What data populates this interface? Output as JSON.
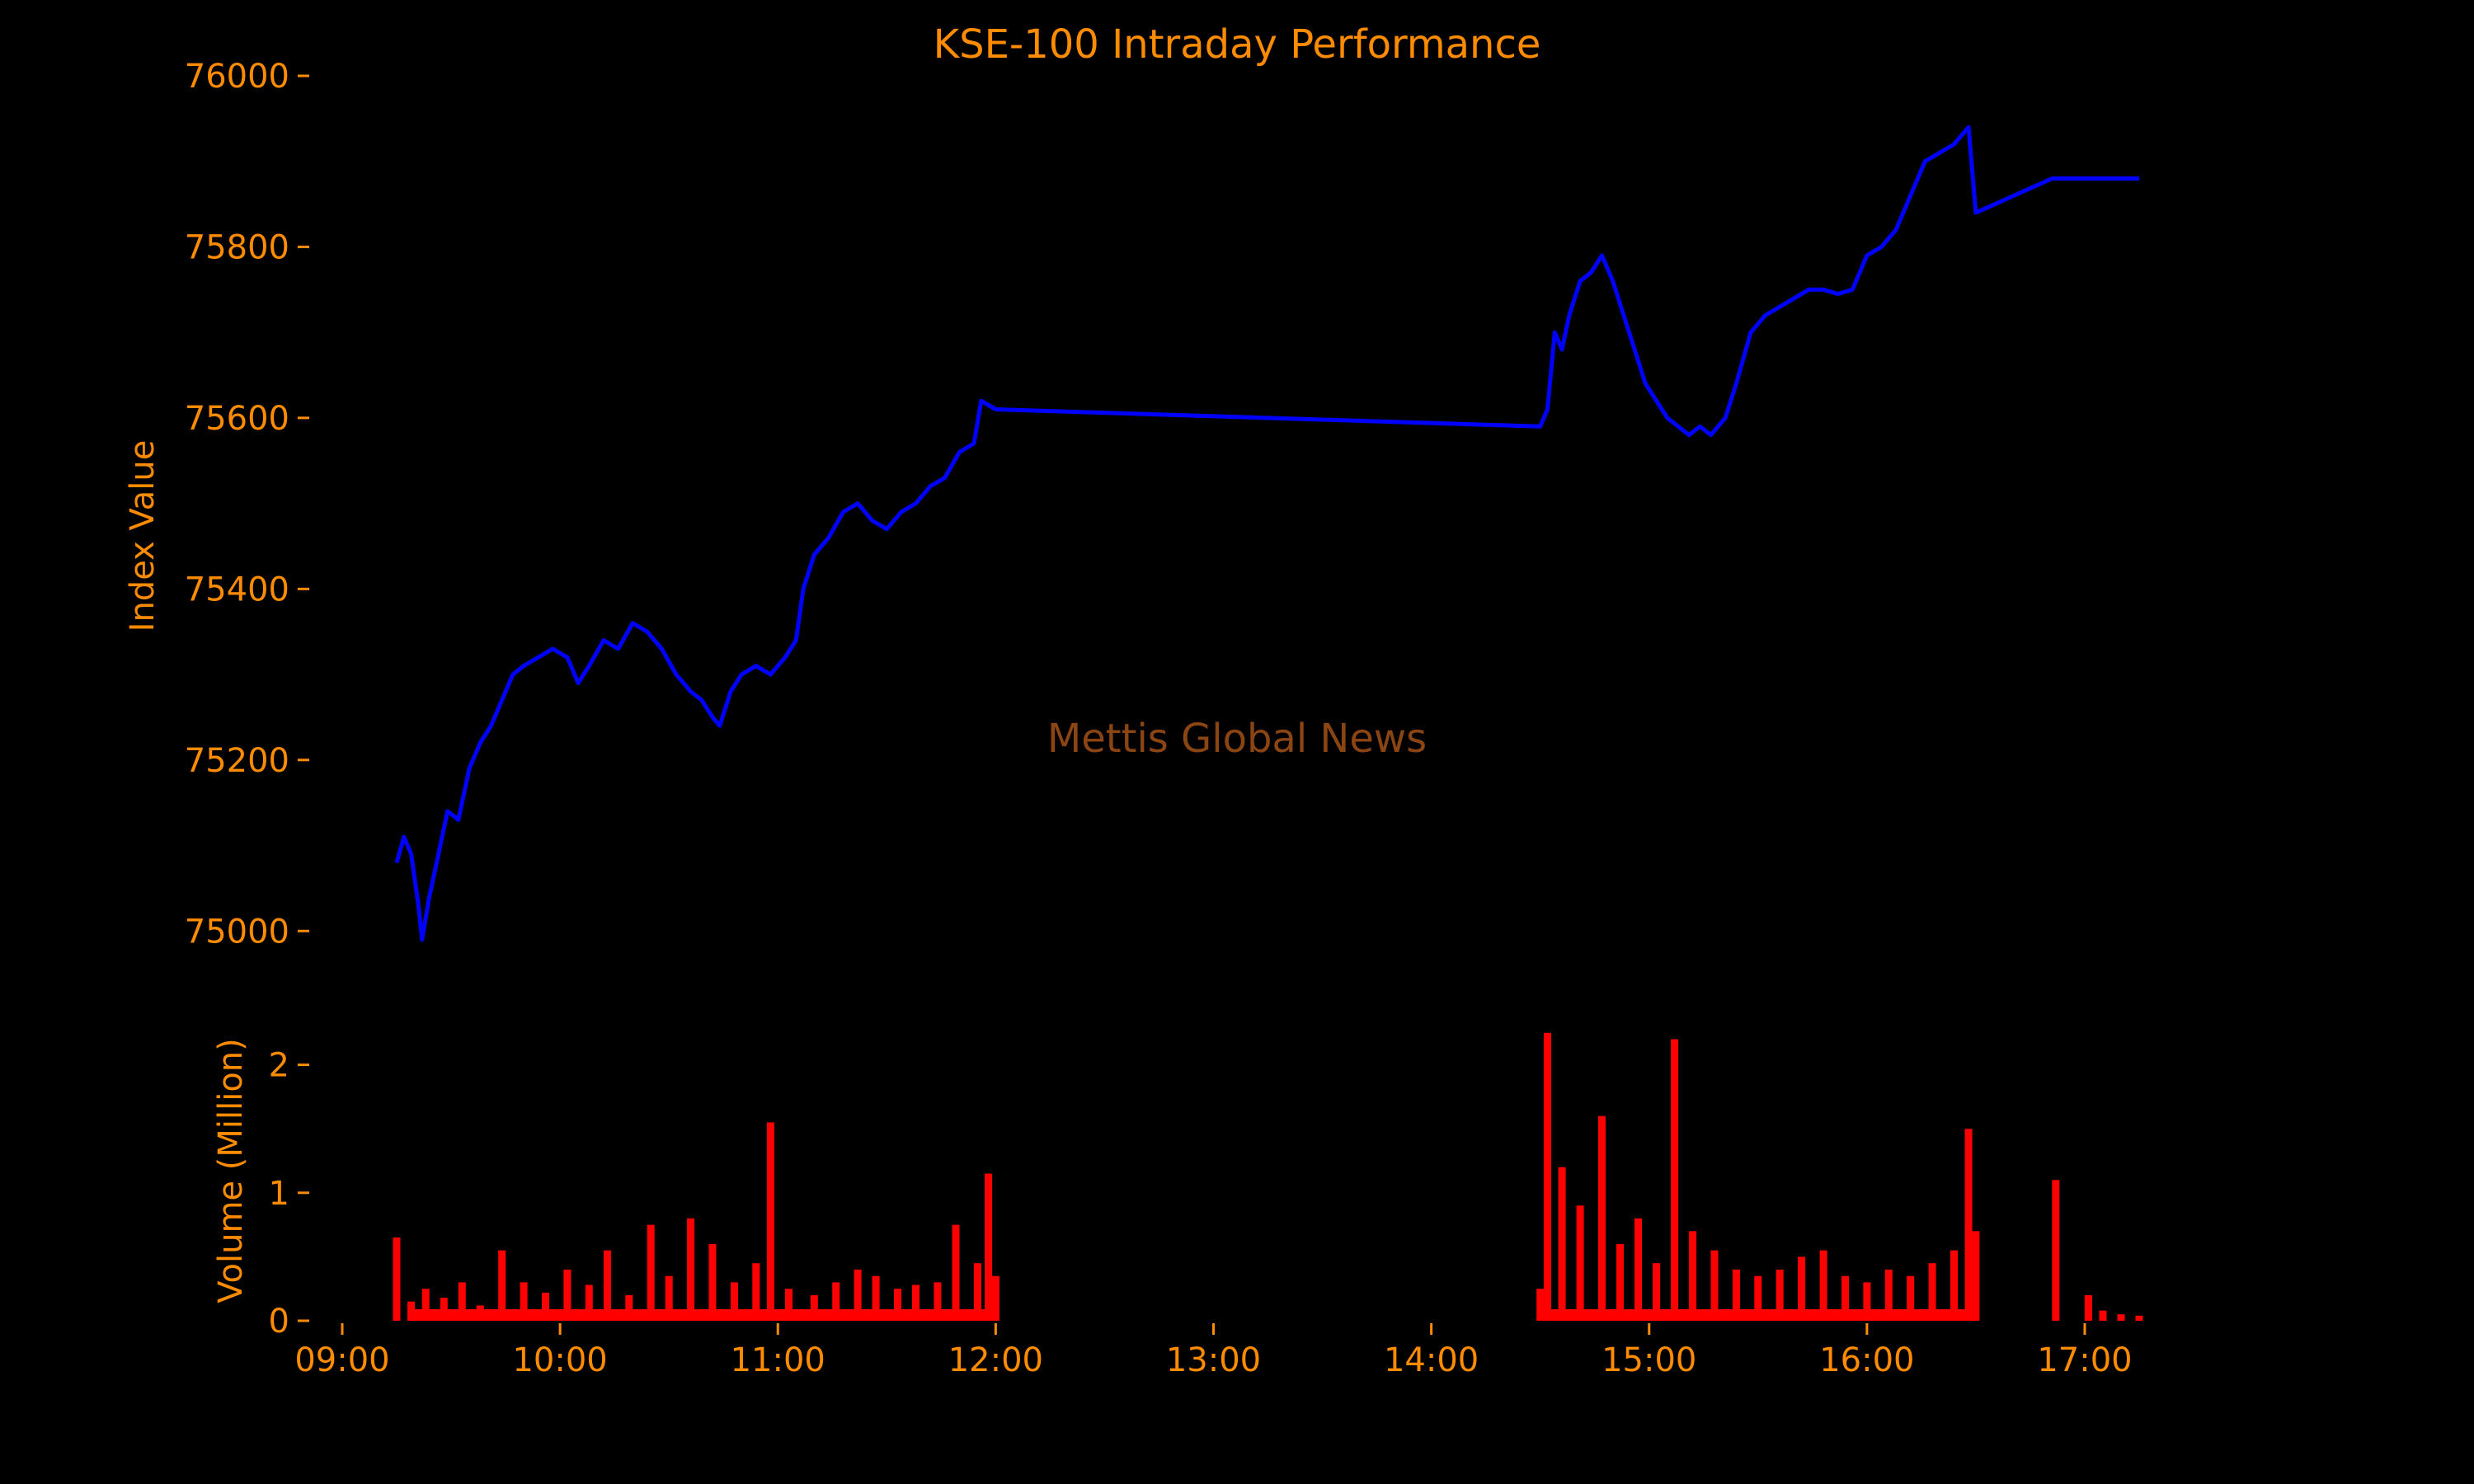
{
  "chart_data": [
    {
      "type": "line",
      "title": "KSE-100 Intraday Performance",
      "xlabel": "",
      "ylabel": "Index Value",
      "xlim": [
        "09:00",
        "17:25"
      ],
      "ylim": [
        74980,
        76000
      ],
      "yticks": [
        75000,
        75200,
        75400,
        75600,
        75800,
        76000
      ],
      "grid": false,
      "series": [
        {
          "color": "#0000FF",
          "points": [
            [
              "09:15",
              75080
            ],
            [
              "09:17",
              75110
            ],
            [
              "09:19",
              75090
            ],
            [
              "09:21",
              75030
            ],
            [
              "09:22",
              74990
            ],
            [
              "09:24",
              75040
            ],
            [
              "09:26",
              75080
            ],
            [
              "09:29",
              75140
            ],
            [
              "09:32",
              75130
            ],
            [
              "09:35",
              75190
            ],
            [
              "09:38",
              75220
            ],
            [
              "09:41",
              75240
            ],
            [
              "09:44",
              75270
            ],
            [
              "09:47",
              75300
            ],
            [
              "09:50",
              75310
            ],
            [
              "09:54",
              75320
            ],
            [
              "09:58",
              75330
            ],
            [
              "10:02",
              75320
            ],
            [
              "10:05",
              75290
            ],
            [
              "10:08",
              75310
            ],
            [
              "10:12",
              75340
            ],
            [
              "10:16",
              75330
            ],
            [
              "10:20",
              75360
            ],
            [
              "10:24",
              75350
            ],
            [
              "10:28",
              75330
            ],
            [
              "10:32",
              75300
            ],
            [
              "10:36",
              75280
            ],
            [
              "10:39",
              75270
            ],
            [
              "10:42",
              75250
            ],
            [
              "10:44",
              75240
            ],
            [
              "10:47",
              75280
            ],
            [
              "10:50",
              75300
            ],
            [
              "10:54",
              75310
            ],
            [
              "10:58",
              75300
            ],
            [
              "11:02",
              75320
            ],
            [
              "11:05",
              75340
            ],
            [
              "11:07",
              75400
            ],
            [
              "11:10",
              75440
            ],
            [
              "11:14",
              75460
            ],
            [
              "11:18",
              75490
            ],
            [
              "11:22",
              75500
            ],
            [
              "11:26",
              75480
            ],
            [
              "11:30",
              75470
            ],
            [
              "11:34",
              75490
            ],
            [
              "11:38",
              75500
            ],
            [
              "11:42",
              75520
            ],
            [
              "11:46",
              75530
            ],
            [
              "11:50",
              75560
            ],
            [
              "11:54",
              75570
            ],
            [
              "11:56",
              75620
            ],
            [
              "11:58",
              75615
            ],
            [
              "12:00",
              75610
            ],
            [
              "14:30",
              75590
            ],
            [
              "14:32",
              75610
            ],
            [
              "14:34",
              75700
            ],
            [
              "14:36",
              75680
            ],
            [
              "14:38",
              75720
            ],
            [
              "14:41",
              75760
            ],
            [
              "14:44",
              75770
            ],
            [
              "14:47",
              75790
            ],
            [
              "14:50",
              75760
            ],
            [
              "14:53",
              75720
            ],
            [
              "14:56",
              75680
            ],
            [
              "14:59",
              75640
            ],
            [
              "15:02",
              75620
            ],
            [
              "15:05",
              75600
            ],
            [
              "15:08",
              75590
            ],
            [
              "15:11",
              75580
            ],
            [
              "15:14",
              75590
            ],
            [
              "15:17",
              75580
            ],
            [
              "15:21",
              75600
            ],
            [
              "15:24",
              75640
            ],
            [
              "15:28",
              75700
            ],
            [
              "15:32",
              75720
            ],
            [
              "15:36",
              75730
            ],
            [
              "15:40",
              75740
            ],
            [
              "15:44",
              75750
            ],
            [
              "15:48",
              75750
            ],
            [
              "15:52",
              75745
            ],
            [
              "15:56",
              75750
            ],
            [
              "16:00",
              75790
            ],
            [
              "16:04",
              75800
            ],
            [
              "16:08",
              75820
            ],
            [
              "16:12",
              75860
            ],
            [
              "16:16",
              75900
            ],
            [
              "16:20",
              75910
            ],
            [
              "16:24",
              75920
            ],
            [
              "16:28",
              75940
            ],
            [
              "16:30",
              75840
            ],
            [
              "16:51",
              75880
            ],
            [
              "17:15",
              75880
            ]
          ]
        }
      ]
    },
    {
      "type": "bar",
      "xlabel": "",
      "ylabel": "Volume (Million)",
      "xlim": [
        "09:00",
        "17:25"
      ],
      "ylim": [
        0,
        2.3
      ],
      "yticks": [
        0,
        1,
        2
      ],
      "xticks": [
        "09:00",
        "10:00",
        "11:00",
        "12:00",
        "13:00",
        "14:00",
        "15:00",
        "16:00",
        "17:00"
      ],
      "grid": false,
      "series": [
        {
          "color": "#FF0000",
          "points": [
            [
              "09:15",
              0.65
            ],
            [
              "09:19",
              0.15
            ],
            [
              "09:23",
              0.25
            ],
            [
              "09:28",
              0.18
            ],
            [
              "09:33",
              0.3
            ],
            [
              "09:38",
              0.12
            ],
            [
              "09:44",
              0.55
            ],
            [
              "09:50",
              0.3
            ],
            [
              "09:56",
              0.22
            ],
            [
              "10:02",
              0.4
            ],
            [
              "10:08",
              0.28
            ],
            [
              "10:13",
              0.55
            ],
            [
              "10:19",
              0.2
            ],
            [
              "10:25",
              0.75
            ],
            [
              "10:30",
              0.35
            ],
            [
              "10:36",
              0.8
            ],
            [
              "10:42",
              0.6
            ],
            [
              "10:48",
              0.3
            ],
            [
              "10:54",
              0.45
            ],
            [
              "10:58",
              1.55
            ],
            [
              "11:03",
              0.25
            ],
            [
              "11:10",
              0.2
            ],
            [
              "11:16",
              0.3
            ],
            [
              "11:22",
              0.4
            ],
            [
              "11:27",
              0.35
            ],
            [
              "11:33",
              0.25
            ],
            [
              "11:38",
              0.28
            ],
            [
              "11:44",
              0.3
            ],
            [
              "11:49",
              0.75
            ],
            [
              "11:55",
              0.45
            ],
            [
              "11:58",
              1.15
            ],
            [
              "12:00",
              0.35
            ],
            [
              "14:30",
              0.25
            ],
            [
              "14:32",
              2.25
            ],
            [
              "14:36",
              1.2
            ],
            [
              "14:41",
              0.9
            ],
            [
              "14:47",
              1.6
            ],
            [
              "14:52",
              0.6
            ],
            [
              "14:57",
              0.8
            ],
            [
              "15:02",
              0.45
            ],
            [
              "15:07",
              2.2
            ],
            [
              "15:12",
              0.7
            ],
            [
              "15:18",
              0.55
            ],
            [
              "15:24",
              0.4
            ],
            [
              "15:30",
              0.35
            ],
            [
              "15:36",
              0.4
            ],
            [
              "15:42",
              0.5
            ],
            [
              "15:48",
              0.55
            ],
            [
              "15:54",
              0.35
            ],
            [
              "16:00",
              0.3
            ],
            [
              "16:06",
              0.4
            ],
            [
              "16:12",
              0.35
            ],
            [
              "16:18",
              0.45
            ],
            [
              "16:24",
              0.55
            ],
            [
              "16:28",
              1.5
            ],
            [
              "16:30",
              0.7
            ],
            [
              "16:52",
              1.1
            ],
            [
              "17:01",
              0.2
            ],
            [
              "17:05",
              0.08
            ],
            [
              "17:10",
              0.05
            ],
            [
              "17:15",
              0.04
            ]
          ]
        }
      ]
    }
  ],
  "watermark": "Mettis Global News",
  "colors": {
    "background": "#000000",
    "text": "#FF8C00",
    "line": "#0000FF",
    "volume": "#FF0000",
    "watermark": "#8B4513"
  }
}
